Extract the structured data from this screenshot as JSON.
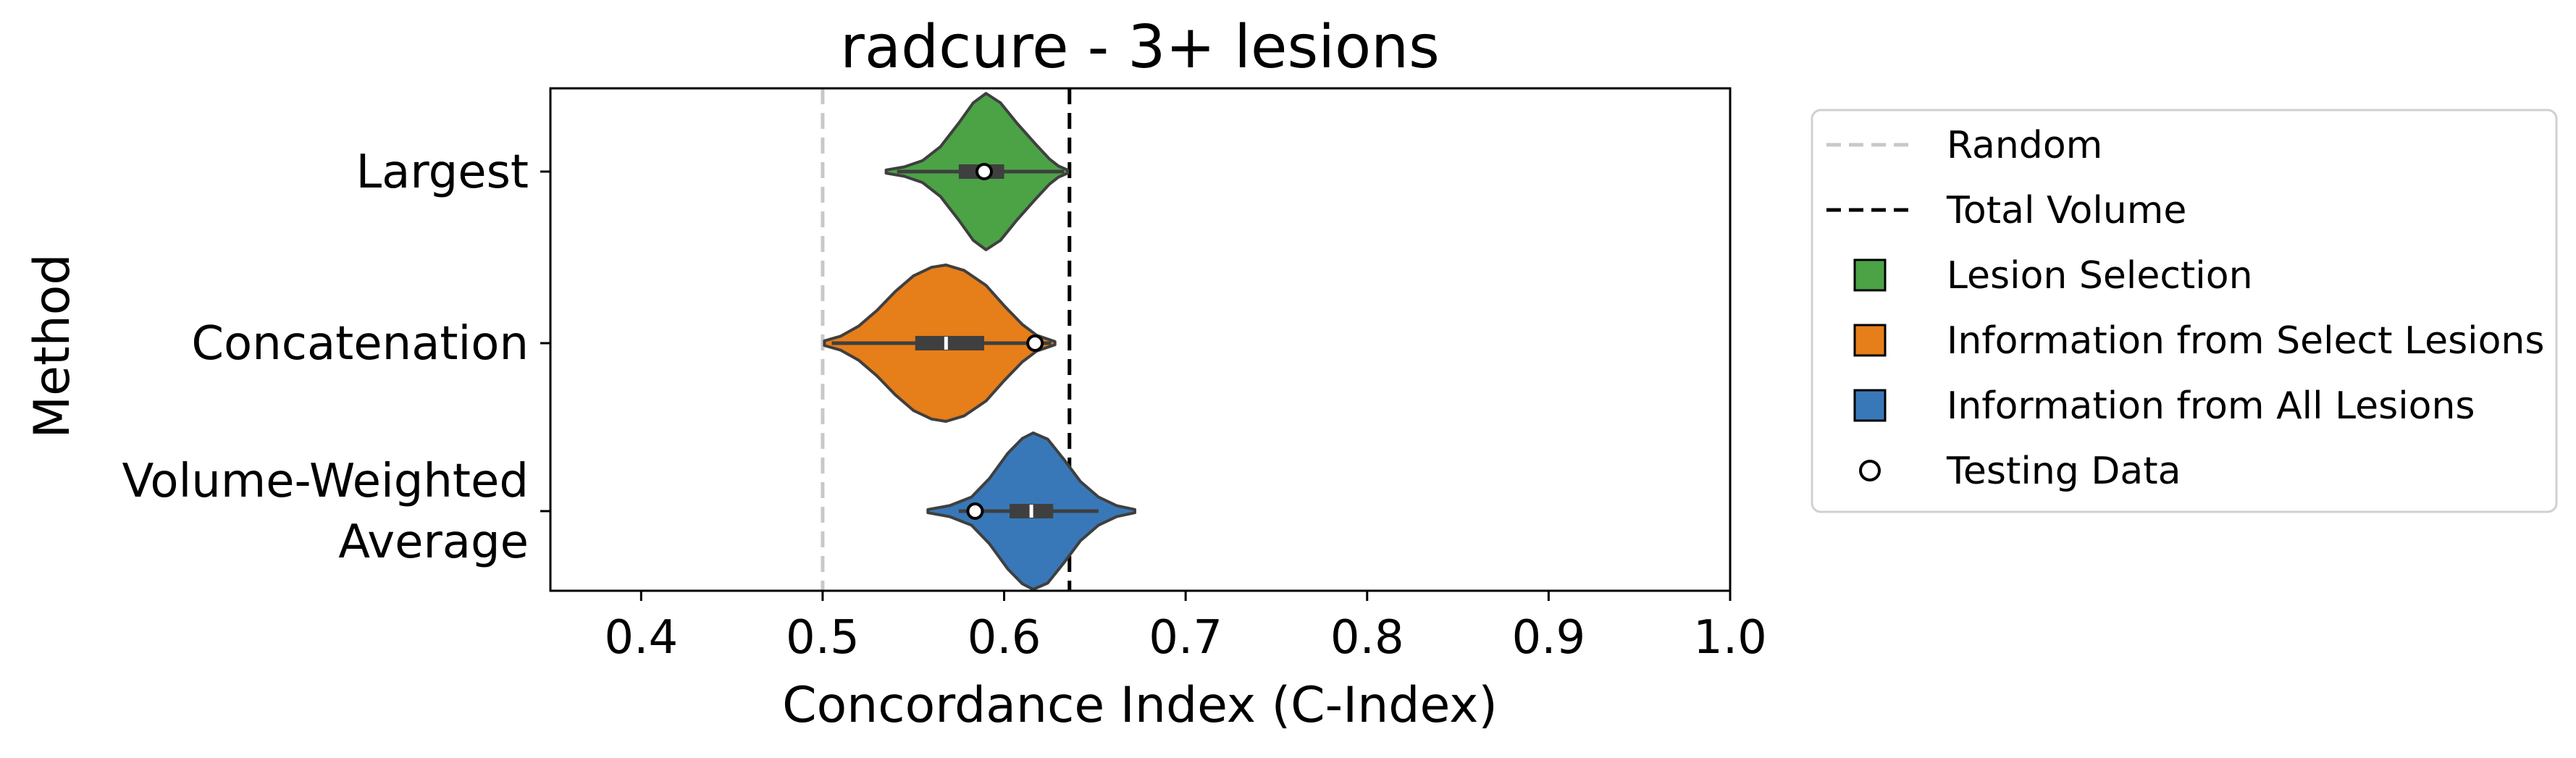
{
  "chart_data": {
    "type": "violin",
    "orientation": "horizontal",
    "title": "radcure - 3+ lesions",
    "xlabel": "Concordance Index (C-Index)",
    "ylabel": "Method",
    "xlim": [
      0.35,
      1.0
    ],
    "xticks": [
      "0.4",
      "0.5",
      "0.6",
      "0.7",
      "0.8",
      "0.9",
      "1.0"
    ],
    "categories": [
      {
        "label_lines": [
          "Largest"
        ]
      },
      {
        "label_lines": [
          "Concatenation"
        ]
      },
      {
        "label_lines": [
          "Volume-Weighted",
          "Average"
        ]
      }
    ],
    "series": [
      {
        "category": "Largest",
        "group": "Lesion Selection",
        "color": "#4ba346",
        "range": [
          0.535,
          0.635
        ],
        "q1": 0.575,
        "median": 0.588,
        "q3": 0.6,
        "whisker": [
          0.541,
          0.633
        ],
        "testing": 0.589,
        "density": [
          [
            0.535,
            0.02
          ],
          [
            0.545,
            0.06
          ],
          [
            0.555,
            0.14
          ],
          [
            0.565,
            0.32
          ],
          [
            0.575,
            0.62
          ],
          [
            0.583,
            0.88
          ],
          [
            0.59,
            1.0
          ],
          [
            0.598,
            0.88
          ],
          [
            0.607,
            0.62
          ],
          [
            0.617,
            0.36
          ],
          [
            0.625,
            0.16
          ],
          [
            0.63,
            0.07
          ],
          [
            0.635,
            0.02
          ]
        ]
      },
      {
        "category": "Concatenation",
        "group": "Information from Select Lesions",
        "color": "#e67e1a",
        "range": [
          0.501,
          0.628
        ],
        "q1": 0.551,
        "median": 0.568,
        "q3": 0.589,
        "whisker": [
          0.505,
          0.626
        ],
        "testing": 0.617,
        "density": [
          [
            0.501,
            0.03
          ],
          [
            0.51,
            0.09
          ],
          [
            0.52,
            0.22
          ],
          [
            0.53,
            0.42
          ],
          [
            0.54,
            0.66
          ],
          [
            0.55,
            0.86
          ],
          [
            0.56,
            0.97
          ],
          [
            0.568,
            1.0
          ],
          [
            0.578,
            0.93
          ],
          [
            0.59,
            0.74
          ],
          [
            0.6,
            0.48
          ],
          [
            0.61,
            0.24
          ],
          [
            0.618,
            0.1
          ],
          [
            0.628,
            0.02
          ]
        ]
      },
      {
        "category": "Volume-Weighted Average",
        "group": "Information from All Lesions",
        "color": "#3878b8",
        "range": [
          0.558,
          0.672
        ],
        "q1": 0.603,
        "median": 0.615,
        "q3": 0.627,
        "whisker": [
          0.575,
          0.652
        ],
        "testing": 0.584,
        "density": [
          [
            0.558,
            0.02
          ],
          [
            0.57,
            0.07
          ],
          [
            0.582,
            0.18
          ],
          [
            0.592,
            0.42
          ],
          [
            0.602,
            0.74
          ],
          [
            0.61,
            0.93
          ],
          [
            0.616,
            1.0
          ],
          [
            0.624,
            0.92
          ],
          [
            0.633,
            0.66
          ],
          [
            0.642,
            0.38
          ],
          [
            0.652,
            0.18
          ],
          [
            0.662,
            0.07
          ],
          [
            0.672,
            0.02
          ]
        ]
      }
    ],
    "reference_lines": [
      {
        "name": "Random",
        "x": 0.5,
        "style": "dashed",
        "color": "#c8c8c8"
      },
      {
        "name": "Total Volume",
        "x": 0.636,
        "style": "dashed",
        "color": "#000000"
      }
    ],
    "legend": {
      "placement": "outside-right",
      "entries": [
        {
          "label": "Random",
          "kind": "line",
          "color": "#c8c8c8"
        },
        {
          "label": "Total Volume",
          "kind": "line",
          "color": "#000000"
        },
        {
          "label": "Lesion Selection",
          "kind": "patch",
          "color": "#4ba346"
        },
        {
          "label": "Information from Select Lesions",
          "kind": "patch",
          "color": "#e67e1a"
        },
        {
          "label": "Information from All Lesions",
          "kind": "patch",
          "color": "#3878b8"
        },
        {
          "label": "Testing Data",
          "kind": "marker",
          "color": "#ffffff"
        }
      ]
    },
    "grid": false
  }
}
